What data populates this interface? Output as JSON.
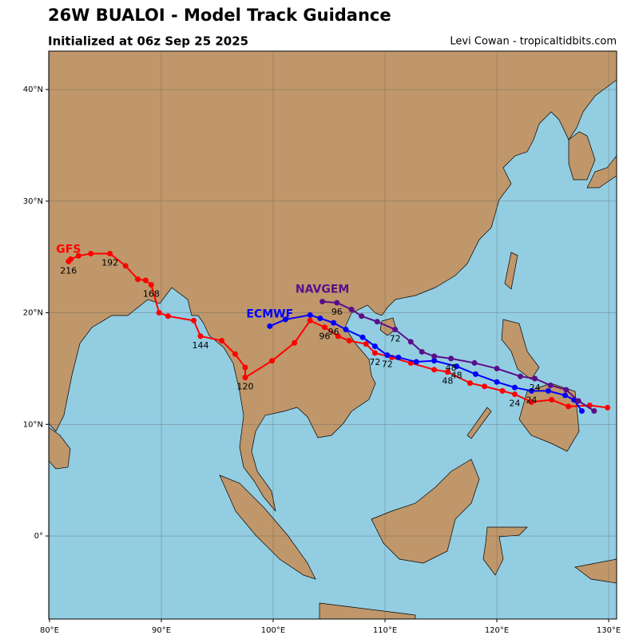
{
  "chart_data": {
    "type": "line",
    "title": "26W BUALOI - Model Track Guidance",
    "subtitle": "Initialized at 06z Sep 25 2025",
    "credit": "Levi Cowan - tropicaltidbits.com",
    "xlim": [
      79.93,
      130.71
    ],
    "ylim": [
      -7.44,
      43.44
    ],
    "xticks": [
      {
        "value": 80,
        "label": "80°E"
      },
      {
        "value": 90,
        "label": "90°E"
      },
      {
        "value": 100,
        "label": "100°E"
      },
      {
        "value": 110,
        "label": "110°E"
      },
      {
        "value": 120,
        "label": "120°E"
      },
      {
        "value": 130,
        "label": "130°E"
      }
    ],
    "yticks": [
      {
        "value": 0,
        "label": "0°"
      },
      {
        "value": 10,
        "label": "10°N"
      },
      {
        "value": 20,
        "label": "20°N"
      },
      {
        "value": 30,
        "label": "30°N"
      },
      {
        "value": 40,
        "label": "40°N"
      }
    ],
    "grid": true,
    "series": [
      {
        "name": "GFS",
        "color": "#ff0000",
        "x": [
          129.9,
          128.3,
          126.4,
          124.9,
          123.1,
          121.6,
          120.5,
          118.9,
          117.6,
          115.6,
          114.4,
          112.3,
          110.6,
          109.1,
          108.3,
          106.8,
          105.8,
          104.6,
          103.3,
          101.9,
          99.9,
          97.5,
          97.5,
          96.6,
          95.4,
          93.5,
          92.9,
          90.6,
          89.8,
          89.1,
          88.6,
          87.9,
          86.8,
          85.4,
          83.7,
          82.6,
          81.9,
          81.7
        ],
        "values": [
          11.5,
          11.7,
          11.6,
          12.2,
          12.0,
          12.7,
          13.0,
          13.4,
          13.7,
          14.7,
          14.9,
          15.5,
          16.0,
          16.4,
          17.2,
          17.5,
          17.9,
          18.7,
          19.3,
          17.3,
          15.7,
          14.2,
          15.1,
          16.3,
          17.5,
          17.9,
          19.3,
          19.7,
          20.0,
          22.5,
          22.9,
          23.0,
          24.2,
          25.3,
          25.3,
          25.1,
          24.8,
          24.6
        ],
        "point_labels": [
          null,
          null,
          null,
          null,
          null,
          "24",
          null,
          null,
          null,
          "48",
          null,
          null,
          null,
          "72",
          null,
          null,
          null,
          "96",
          null,
          null,
          null,
          "120",
          null,
          null,
          null,
          "144",
          null,
          null,
          null,
          "168",
          null,
          null,
          null,
          "192",
          null,
          null,
          null,
          "216"
        ]
      },
      {
        "name": "ECMWF",
        "color": "#0000ff",
        "x": [
          127.6,
          126.9,
          126.1,
          124.6,
          123.1,
          121.6,
          120.0,
          118.1,
          116.4,
          114.4,
          112.8,
          111.2,
          110.2,
          109.1,
          108.0,
          106.5,
          105.4,
          104.2,
          103.3,
          101.1,
          99.7
        ],
        "values": [
          11.2,
          12.2,
          12.6,
          13.0,
          13.0,
          13.3,
          13.8,
          14.5,
          15.2,
          15.7,
          15.6,
          16.0,
          16.2,
          17.0,
          17.8,
          18.5,
          19.1,
          19.5,
          19.8,
          19.4,
          18.8
        ],
        "point_labels": [
          null,
          null,
          null,
          null,
          "24",
          null,
          null,
          null,
          "48",
          null,
          null,
          null,
          "72",
          null,
          null,
          null,
          "96",
          null,
          null,
          null,
          null
        ]
      },
      {
        "name": "NAVGEM",
        "color": "#5a0e8a",
        "x": [
          128.7,
          127.3,
          126.2,
          124.8,
          123.4,
          122.1,
          120.0,
          118.0,
          115.9,
          114.4,
          113.3,
          112.3,
          110.9,
          109.3,
          107.9,
          107.0,
          105.7,
          104.4
        ],
        "values": [
          11.2,
          12.1,
          13.1,
          13.5,
          14.1,
          14.3,
          15.0,
          15.5,
          15.9,
          16.1,
          16.5,
          17.4,
          18.5,
          19.2,
          19.7,
          20.3,
          20.9,
          21.0
        ],
        "point_labels": [
          null,
          null,
          null,
          null,
          "24",
          null,
          null,
          null,
          "48",
          null,
          null,
          null,
          "72",
          null,
          null,
          null,
          "96",
          null
        ]
      }
    ]
  }
}
